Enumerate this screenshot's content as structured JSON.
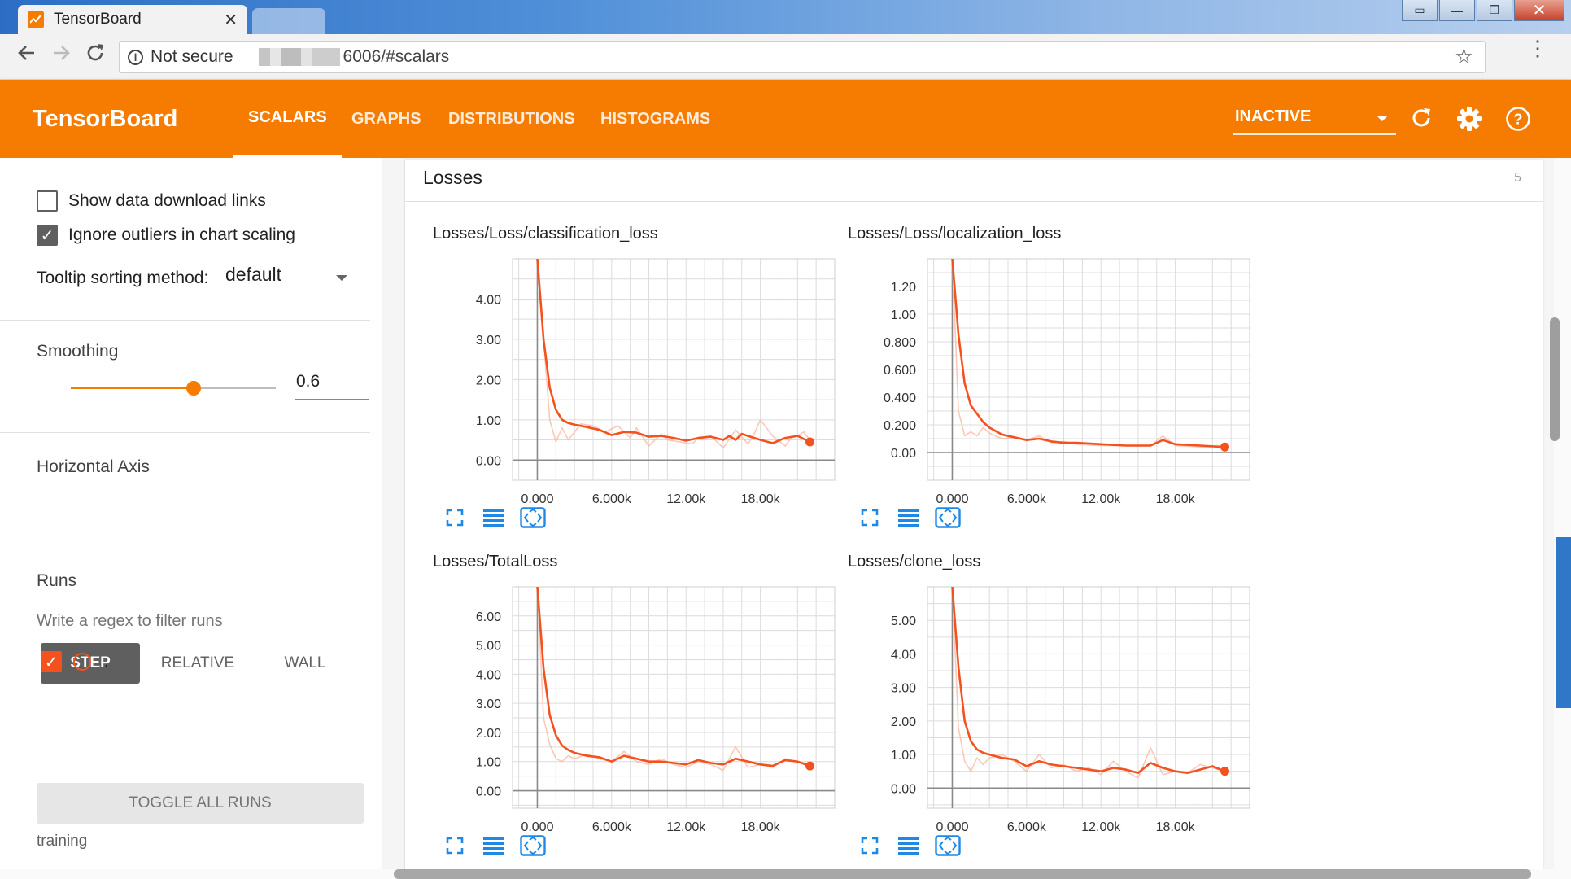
{
  "browser": {
    "tab_title": "TensorBoard",
    "tab_close": "✕",
    "security_label": "Not secure",
    "url_visible": "6006/#scalars",
    "window_controls": [
      "▭",
      "—",
      "❐",
      "✕"
    ]
  },
  "header": {
    "brand": "TensorBoard",
    "tabs": [
      {
        "label": "SCALARS",
        "active": true
      },
      {
        "label": "GRAPHS",
        "active": false
      },
      {
        "label": "DISTRIBUTIONS",
        "active": false
      },
      {
        "label": "HISTOGRAMS",
        "active": false
      }
    ],
    "status": "INACTIVE",
    "icons": [
      "refresh-icon",
      "settings-icon",
      "help-icon"
    ]
  },
  "sidebar": {
    "show_download_links": {
      "label": "Show data download links",
      "checked": false
    },
    "ignore_outliers": {
      "label": "Ignore outliers in chart scaling",
      "checked": true
    },
    "tooltip_sort": {
      "label": "Tooltip sorting method:",
      "value": "default"
    },
    "smoothing": {
      "label": "Smoothing",
      "value": 0.6,
      "value_text": "0.6"
    },
    "horizontal_axis": {
      "label": "Horizontal Axis",
      "options": [
        {
          "label": "STEP",
          "active": true
        },
        {
          "label": "RELATIVE",
          "active": false
        },
        {
          "label": "WALL",
          "active": false
        }
      ]
    },
    "runs": {
      "label": "Runs",
      "filter_placeholder": "Write a regex to filter runs",
      "items": [
        {
          "name": ".",
          "checked": true
        }
      ],
      "toggle_all": "TOGGLE ALL RUNS",
      "footer": "training"
    }
  },
  "main": {
    "category_title": "Losses",
    "category_count": "5",
    "colors": {
      "smoothed": "#f4511e",
      "raw": "#f9b6a0",
      "accent": "#f57c00"
    }
  },
  "chart_data": [
    {
      "type": "line",
      "title": "Losses/Loss/classification_loss",
      "xlabel": "",
      "ylabel": "",
      "xlim": [
        -2000,
        24000
      ],
      "ylim": [
        -0.5,
        5
      ],
      "x_ticks": [
        {
          "v": 0,
          "t": "0.000"
        },
        {
          "v": 6000,
          "t": "6.000k"
        },
        {
          "v": 12000,
          "t": "12.00k"
        },
        {
          "v": 18000,
          "t": "18.00k"
        }
      ],
      "y_ticks": [
        {
          "v": 0,
          "t": "0.00"
        },
        {
          "v": 1,
          "t": "1.00"
        },
        {
          "v": 2,
          "t": "2.00"
        },
        {
          "v": 3,
          "t": "3.00"
        },
        {
          "v": 4,
          "t": "4.00"
        }
      ],
      "series": [
        {
          "role": "raw",
          "x": [
            0,
            500,
            1000,
            1500,
            2000,
            2500,
            3000,
            3500,
            4500,
            5500,
            6500,
            7500,
            8000,
            9000,
            10000,
            10500,
            11500,
            12500,
            13000,
            14000,
            15000,
            16000,
            17000,
            17500,
            18000,
            19000,
            20000,
            20500,
            21000,
            21500,
            22000
          ],
          "y": [
            5,
            3.0,
            1.0,
            0.45,
            0.8,
            0.5,
            0.7,
            0.9,
            0.85,
            0.7,
            0.85,
            0.55,
            0.8,
            0.35,
            0.65,
            0.5,
            0.45,
            0.4,
            0.55,
            0.6,
            0.3,
            0.75,
            0.4,
            0.65,
            1.0,
            0.6,
            0.35,
            0.55,
            0.6,
            0.7,
            0.5
          ]
        },
        {
          "role": "smoothed",
          "x": [
            0,
            500,
            1000,
            1500,
            2000,
            2500,
            3000,
            3500,
            4000,
            5000,
            6000,
            7000,
            8000,
            9000,
            10000,
            11000,
            12000,
            13000,
            14000,
            15000,
            15500,
            16000,
            16500,
            17000,
            18000,
            19000,
            20000,
            21000,
            22000
          ],
          "y": [
            5,
            3.0,
            1.8,
            1.25,
            1.0,
            0.92,
            0.88,
            0.85,
            0.82,
            0.75,
            0.62,
            0.7,
            0.68,
            0.58,
            0.6,
            0.55,
            0.48,
            0.55,
            0.58,
            0.5,
            0.6,
            0.5,
            0.65,
            0.6,
            0.5,
            0.42,
            0.55,
            0.6,
            0.45
          ]
        }
      ]
    },
    {
      "type": "line",
      "title": "Losses/Loss/localization_loss",
      "xlabel": "",
      "ylabel": "",
      "xlim": [
        -2000,
        24000
      ],
      "ylim": [
        -0.2,
        1.4
      ],
      "x_ticks": [
        {
          "v": 0,
          "t": "0.000"
        },
        {
          "v": 6000,
          "t": "6.000k"
        },
        {
          "v": 12000,
          "t": "12.00k"
        },
        {
          "v": 18000,
          "t": "18.00k"
        }
      ],
      "y_ticks": [
        {
          "v": 0,
          "t": "0.00"
        },
        {
          "v": 0.2,
          "t": "0.200"
        },
        {
          "v": 0.4,
          "t": "0.400"
        },
        {
          "v": 0.6,
          "t": "0.600"
        },
        {
          "v": 0.8,
          "t": "0.800"
        },
        {
          "v": 1.0,
          "t": "1.00"
        },
        {
          "v": 1.2,
          "t": "1.20"
        }
      ],
      "series": [
        {
          "role": "raw",
          "x": [
            0,
            500,
            1000,
            1500,
            2000,
            2500,
            3000,
            3500,
            4000,
            5000,
            6000,
            7000,
            8000,
            9000,
            10000,
            12000,
            14000,
            16000,
            17000,
            18000,
            20000,
            22000
          ],
          "y": [
            1.4,
            0.3,
            0.12,
            0.15,
            0.12,
            0.18,
            0.14,
            0.12,
            0.1,
            0.11,
            0.09,
            0.12,
            0.07,
            0.08,
            0.06,
            0.05,
            0.05,
            0.05,
            0.12,
            0.05,
            0.04,
            0.04
          ]
        },
        {
          "role": "smoothed",
          "x": [
            0,
            500,
            1000,
            1500,
            2000,
            2500,
            3000,
            4000,
            5000,
            6000,
            7000,
            8000,
            9000,
            10000,
            12000,
            14000,
            16000,
            17000,
            18000,
            20000,
            22000
          ],
          "y": [
            1.4,
            0.85,
            0.5,
            0.34,
            0.28,
            0.22,
            0.18,
            0.13,
            0.11,
            0.09,
            0.1,
            0.08,
            0.07,
            0.07,
            0.06,
            0.05,
            0.05,
            0.09,
            0.06,
            0.05,
            0.04
          ]
        }
      ]
    },
    {
      "type": "line",
      "title": "Losses/TotalLoss",
      "xlabel": "",
      "ylabel": "",
      "xlim": [
        -2000,
        24000
      ],
      "ylim": [
        -0.6,
        7
      ],
      "x_ticks": [
        {
          "v": 0,
          "t": "0.000"
        },
        {
          "v": 6000,
          "t": "6.000k"
        },
        {
          "v": 12000,
          "t": "12.00k"
        },
        {
          "v": 18000,
          "t": "18.00k"
        }
      ],
      "y_ticks": [
        {
          "v": 0,
          "t": "0.00"
        },
        {
          "v": 1,
          "t": "1.00"
        },
        {
          "v": 2,
          "t": "2.00"
        },
        {
          "v": 3,
          "t": "3.00"
        },
        {
          "v": 4,
          "t": "4.00"
        },
        {
          "v": 5,
          "t": "5.00"
        },
        {
          "v": 6,
          "t": "6.00"
        }
      ],
      "series": [
        {
          "role": "raw",
          "x": [
            0,
            500,
            1000,
            1500,
            2000,
            2500,
            3000,
            4000,
            5000,
            6000,
            7000,
            8000,
            9000,
            10000,
            11000,
            12000,
            13000,
            14000,
            15000,
            16000,
            17000,
            18000,
            19000,
            20000,
            21000,
            22000
          ],
          "y": [
            7,
            2.5,
            1.6,
            1.1,
            1.0,
            1.2,
            1.1,
            1.25,
            1.1,
            1.0,
            1.35,
            1.0,
            0.9,
            1.1,
            0.9,
            0.8,
            1.0,
            0.9,
            0.7,
            1.5,
            0.8,
            0.9,
            0.8,
            1.1,
            1.0,
            0.9
          ]
        },
        {
          "role": "smoothed",
          "x": [
            0,
            500,
            1000,
            1500,
            2000,
            2500,
            3000,
            4000,
            5000,
            6000,
            7000,
            8000,
            9000,
            10000,
            11000,
            12000,
            13000,
            14000,
            15000,
            16000,
            17000,
            18000,
            19000,
            20000,
            21000,
            22000
          ],
          "y": [
            7,
            4.2,
            2.6,
            1.9,
            1.55,
            1.4,
            1.3,
            1.2,
            1.15,
            1.0,
            1.2,
            1.1,
            1.0,
            1.0,
            0.95,
            0.9,
            1.05,
            0.95,
            0.9,
            1.1,
            1.0,
            0.9,
            0.85,
            1.05,
            1.0,
            0.85
          ]
        }
      ]
    },
    {
      "type": "line",
      "title": "Losses/clone_loss",
      "xlabel": "",
      "ylabel": "",
      "xlim": [
        -2000,
        24000
      ],
      "ylim": [
        -0.6,
        6
      ],
      "x_ticks": [
        {
          "v": 0,
          "t": "0.000"
        },
        {
          "v": 6000,
          "t": "6.000k"
        },
        {
          "v": 12000,
          "t": "12.00k"
        },
        {
          "v": 18000,
          "t": "18.00k"
        }
      ],
      "y_ticks": [
        {
          "v": 0,
          "t": "0.00"
        },
        {
          "v": 1,
          "t": "1.00"
        },
        {
          "v": 2,
          "t": "2.00"
        },
        {
          "v": 3,
          "t": "3.00"
        },
        {
          "v": 4,
          "t": "4.00"
        },
        {
          "v": 5,
          "t": "5.00"
        }
      ],
      "series": [
        {
          "role": "raw",
          "x": [
            0,
            500,
            1000,
            1500,
            2000,
            2500,
            3000,
            4000,
            5000,
            6000,
            7000,
            8000,
            9000,
            10000,
            11000,
            12000,
            13000,
            14000,
            15000,
            16000,
            17000,
            18000,
            19000,
            20000,
            21000,
            22000
          ],
          "y": [
            6,
            1.8,
            0.8,
            0.5,
            0.9,
            0.7,
            0.9,
            1.0,
            0.8,
            0.5,
            1.0,
            0.6,
            0.7,
            0.5,
            0.6,
            0.4,
            0.8,
            0.5,
            0.3,
            1.2,
            0.4,
            0.5,
            0.45,
            0.7,
            0.6,
            0.5
          ]
        },
        {
          "role": "smoothed",
          "x": [
            0,
            500,
            1000,
            1500,
            2000,
            2500,
            3000,
            4000,
            5000,
            6000,
            7000,
            8000,
            9000,
            10000,
            11000,
            12000,
            13000,
            14000,
            15000,
            16000,
            17000,
            18000,
            19000,
            20000,
            21000,
            22000
          ],
          "y": [
            6,
            3.6,
            2.0,
            1.4,
            1.15,
            1.05,
            1.0,
            0.9,
            0.85,
            0.65,
            0.8,
            0.7,
            0.65,
            0.6,
            0.55,
            0.5,
            0.6,
            0.55,
            0.45,
            0.75,
            0.6,
            0.5,
            0.45,
            0.55,
            0.65,
            0.5
          ]
        }
      ]
    }
  ]
}
